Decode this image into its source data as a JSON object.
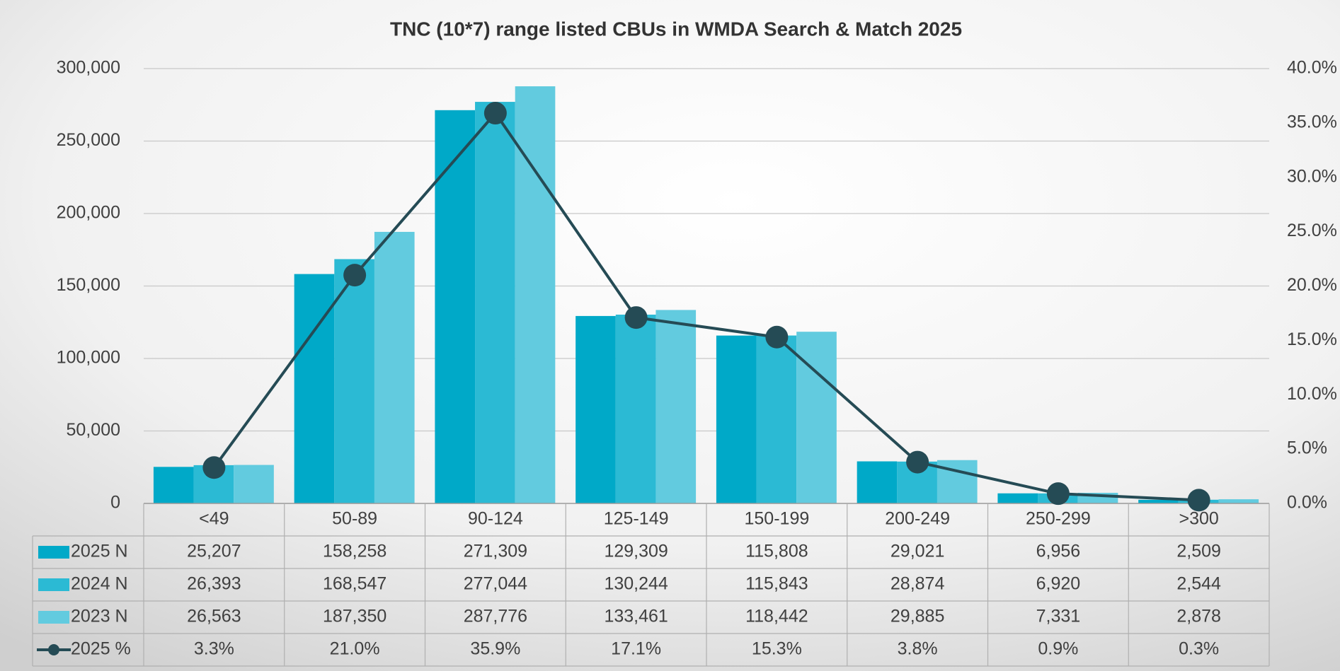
{
  "chart_data": {
    "type": "bar",
    "title": "TNC (10*7) range listed CBUs in WMDA Search & Match 2025",
    "categories": [
      "<49",
      "50-89",
      "90-124",
      "125-149",
      "150-199",
      "200-249",
      "250-299",
      ">300"
    ],
    "series": [
      {
        "name": "2025 N",
        "color": "#00a9c8",
        "values": [
          25207,
          158258,
          271309,
          129309,
          115808,
          29021,
          6956,
          2509
        ],
        "value_labels": [
          "25,207",
          "158,258",
          "271,309",
          "129,309",
          "115,808",
          "29,021",
          "6,956",
          "2,509"
        ]
      },
      {
        "name": "2024 N",
        "color": "#2bbad4",
        "values": [
          26393,
          168547,
          277044,
          130244,
          115843,
          28874,
          6920,
          2544
        ],
        "value_labels": [
          "26,393",
          "168,547",
          "277,044",
          "130,244",
          "115,843",
          "28,874",
          "6,920",
          "2,544"
        ]
      },
      {
        "name": "2023 N",
        "color": "#62cbdf",
        "values": [
          26563,
          187350,
          287776,
          133461,
          118442,
          29885,
          7331,
          2878
        ],
        "value_labels": [
          "26,563",
          "187,350",
          "287,776",
          "133,461",
          "118,442",
          "29,885",
          "7,331",
          "2,878"
        ]
      },
      {
        "name": "2025 %",
        "type": "line",
        "axis": "y2",
        "color": "#254b55",
        "values": [
          3.3,
          21.0,
          35.9,
          17.1,
          15.3,
          3.8,
          0.9,
          0.3
        ],
        "value_labels": [
          "3.3%",
          "21.0%",
          "35.9%",
          "17.1%",
          "15.3%",
          "3.8%",
          "0.9%",
          "0.3%"
        ]
      }
    ],
    "ylim": [
      0,
      300000
    ],
    "yticks": [
      0,
      {
        "value": 50000,
        "label": "50,000"
      },
      {
        "value": 100000,
        "label": "100,000"
      },
      {
        "value": 150000,
        "label": "150,000"
      },
      {
        "value": 200000,
        "label": "200,000"
      },
      {
        "value": 250000,
        "label": "250,000"
      },
      {
        "value": 300000,
        "label": "300,000"
      }
    ],
    "y2lim": [
      0,
      40
    ],
    "y2ticks": [
      {
        "value": 0,
        "label": "0.0%"
      },
      {
        "value": 5,
        "label": "5.0%"
      },
      {
        "value": 10,
        "label": "10.0%"
      },
      {
        "value": 15,
        "label": "15.0%"
      },
      {
        "value": 20,
        "label": "20.0%"
      },
      {
        "value": 25,
        "label": "25.0%"
      },
      {
        "value": 30,
        "label": "30.0%"
      },
      {
        "value": 35,
        "label": "35.0%"
      },
      {
        "value": 40,
        "label": "40.0%"
      }
    ],
    "grid": true
  }
}
